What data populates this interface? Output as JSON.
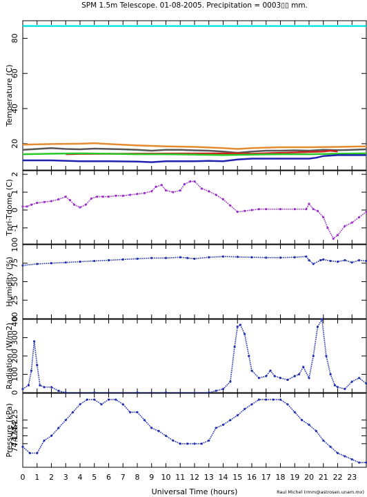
{
  "title": "SPM 1.5m Telescope. 01-08-2005. Precipitation = 0003▯▯ mm.",
  "xlabel": "Universal Time (hours)",
  "credit": "Raul Michel (rmm@astrosen.unam.mx)",
  "x_ticks": [
    0,
    1,
    2,
    3,
    4,
    5,
    6,
    7,
    8,
    9,
    10,
    11,
    12,
    13,
    14,
    15,
    16,
    17,
    18,
    19,
    20,
    21,
    22,
    23
  ],
  "xlim": [
    0,
    24
  ],
  "chart_data": [
    {
      "type": "line",
      "ylabel": "Temperature (C)",
      "ylim": [
        5,
        90
      ],
      "y_ticks": [
        20,
        40,
        60,
        80
      ],
      "series": [
        {
          "color": "#00e5e5",
          "x": [
            0,
            24
          ],
          "y": [
            87,
            87
          ]
        },
        {
          "color": "#e58a2e",
          "x": [
            0,
            2,
            4,
            5,
            6,
            8,
            10,
            12,
            14,
            15,
            16,
            18,
            20,
            22,
            24
          ],
          "y": [
            19.5,
            19.8,
            20,
            20.3,
            19.8,
            19,
            18.5,
            18.2,
            17.5,
            17,
            17.5,
            18,
            18,
            18.2,
            18.5
          ]
        },
        {
          "color": "#555555",
          "x": [
            0,
            1,
            2,
            3,
            4,
            5,
            6,
            7,
            8,
            9,
            10,
            11,
            12,
            13,
            14,
            15,
            16,
            17,
            18,
            19,
            20,
            21,
            22,
            23,
            24
          ],
          "y": [
            16.5,
            17,
            17.5,
            17,
            16.8,
            17.2,
            17,
            16.8,
            16.5,
            16,
            16.5,
            16.5,
            16.2,
            16,
            15.5,
            14.8,
            15.5,
            16,
            16,
            16.2,
            16,
            16.5,
            16.3,
            16.5,
            16.8
          ]
        },
        {
          "color": "#d02020",
          "x": [
            3,
            4,
            15,
            16,
            21,
            21.5,
            22
          ],
          "y": [
            14,
            14.2,
            14.5,
            14.3,
            15.5,
            16,
            15.5
          ]
        },
        {
          "color": "#28c828",
          "x": [
            0,
            2,
            4,
            6,
            8,
            10,
            12,
            14,
            16,
            18,
            20,
            22,
            24
          ],
          "y": [
            14,
            14.3,
            14.5,
            14.3,
            14,
            14,
            13.8,
            13.5,
            13.8,
            14,
            14,
            14.3,
            14.5
          ]
        },
        {
          "color": "#2020b0",
          "x": [
            0,
            2,
            4,
            6,
            8,
            9,
            10,
            12,
            13,
            14,
            15,
            16,
            18,
            20,
            20.5,
            21,
            22,
            24
          ],
          "y": [
            10.5,
            10.5,
            10,
            10,
            9.8,
            9.5,
            10,
            10,
            10.2,
            10,
            11,
            11.5,
            11.5,
            11.5,
            12,
            13,
            13.5,
            13.5
          ]
        }
      ]
    },
    {
      "type": "scatter",
      "ylabel": "Tpri-Tdome (C)",
      "ylim": [
        -1.9,
        2.2
      ],
      "y_ticks": [
        -1,
        0,
        1,
        2
      ],
      "series": [
        {
          "color": "#9a2fc8",
          "x": [
            0,
            0.3,
            0.6,
            1,
            1.5,
            2,
            2.5,
            3,
            3.3,
            3.6,
            4,
            4.4,
            4.8,
            5.2,
            5.6,
            6,
            6.5,
            7,
            7.5,
            8,
            8.5,
            9,
            9.3,
            9.7,
            10,
            10.5,
            11,
            11.3,
            11.7,
            12,
            12.5,
            13,
            13.5,
            14,
            14.5,
            15,
            15.5,
            16,
            16.5,
            17,
            18,
            19,
            19.8,
            20,
            20.3,
            20.6,
            21,
            21.3,
            21.7,
            22,
            22.5,
            23,
            23.5,
            24
          ],
          "y": [
            0.2,
            0.2,
            0.3,
            0.4,
            0.45,
            0.5,
            0.6,
            0.75,
            0.55,
            0.3,
            0.15,
            0.3,
            0.65,
            0.75,
            0.75,
            0.75,
            0.8,
            0.8,
            0.85,
            0.9,
            0.95,
            1.05,
            1.3,
            1.4,
            1.1,
            1,
            1.1,
            1.45,
            1.6,
            1.6,
            1.2,
            1.05,
            0.85,
            0.6,
            0.25,
            -0.1,
            -0.05,
            0,
            0.05,
            0.05,
            0.05,
            0.05,
            0.05,
            0.35,
            0.05,
            -0.05,
            -0.4,
            -1.0,
            -1.6,
            -1.4,
            -0.9,
            -0.7,
            -0.4,
            -0.1
          ]
        }
      ]
    },
    {
      "type": "scatter",
      "ylabel": "Humidity (%)",
      "ylim": [
        0,
        100
      ],
      "y_ticks": [
        0,
        25,
        50,
        75,
        100
      ],
      "series": [
        {
          "color": "#2030b0",
          "x": [
            0,
            1,
            2,
            3,
            4,
            5,
            6,
            7,
            8,
            9,
            10,
            11,
            11.5,
            12,
            13,
            14,
            15,
            16,
            17,
            18,
            19,
            19.8,
            20,
            20.3,
            20.8,
            21,
            21.5,
            22,
            22.5,
            23,
            23.5,
            24
          ],
          "y": [
            72,
            74,
            75,
            76,
            77,
            78,
            79,
            80,
            81,
            82,
            82,
            83,
            82,
            81,
            83,
            84,
            83.5,
            83,
            82.5,
            82.5,
            83,
            84,
            79,
            74,
            79,
            80,
            78,
            77,
            79,
            76,
            79,
            78
          ]
        }
      ]
    },
    {
      "type": "scatter",
      "ylabel": "Radiation (W/m2)",
      "ylim": [
        0,
        400
      ],
      "y_ticks": [
        0,
        100,
        200,
        300,
        400
      ],
      "series": [
        {
          "color": "#2030b0",
          "x": [
            0,
            0.4,
            0.6,
            0.8,
            1,
            1.2,
            1.5,
            2,
            2.5,
            3,
            5,
            8,
            10,
            13,
            13.5,
            14,
            14.5,
            14.8,
            15,
            15.2,
            15.5,
            15.8,
            16,
            16.5,
            17,
            17.3,
            17.6,
            18,
            18.5,
            19,
            19.3,
            19.6,
            20,
            20.3,
            20.6,
            20.9,
            21.2,
            21.5,
            21.8,
            22,
            22.5,
            23,
            23.5,
            24
          ],
          "y": [
            20,
            40,
            120,
            280,
            150,
            40,
            30,
            30,
            10,
            0,
            0,
            0,
            0,
            0,
            10,
            20,
            60,
            250,
            360,
            370,
            320,
            200,
            120,
            80,
            90,
            120,
            90,
            80,
            70,
            90,
            100,
            140,
            80,
            200,
            360,
            400,
            200,
            100,
            40,
            30,
            20,
            60,
            80,
            50
          ]
        }
      ]
    },
    {
      "type": "scatter",
      "ylabel": "Pressure (kPa)",
      "ylim": [
        73.95,
        74.42
      ],
      "y_ticks_labels": [
        "74.1",
        "74.15",
        "74.2",
        "74.25"
      ],
      "y_ticks": [
        74.1,
        74.15,
        74.2,
        74.25
      ],
      "series": [
        {
          "color": "#2030b0",
          "x": [
            0,
            0.5,
            1,
            1.5,
            2,
            2.5,
            3,
            3.5,
            4,
            4.5,
            5,
            5.5,
            6,
            6.5,
            7,
            7.5,
            8,
            8.5,
            9,
            9.5,
            10,
            10.5,
            11,
            11.5,
            12,
            12.5,
            13,
            13.5,
            14,
            14.5,
            15,
            15.5,
            16,
            16.5,
            17,
            17.5,
            18,
            18.5,
            19,
            19.5,
            20,
            20.5,
            21,
            21.5,
            22,
            22.5,
            23,
            23.5,
            24
          ],
          "y": [
            74.08,
            74.04,
            74.04,
            74.12,
            74.15,
            74.2,
            74.25,
            74.3,
            74.35,
            74.38,
            74.38,
            74.35,
            74.38,
            74.38,
            74.35,
            74.3,
            74.3,
            74.25,
            74.2,
            74.18,
            74.15,
            74.12,
            74.1,
            74.1,
            74.1,
            74.1,
            74.12,
            74.2,
            74.22,
            74.25,
            74.28,
            74.32,
            74.35,
            74.38,
            74.38,
            74.38,
            74.38,
            74.35,
            74.3,
            74.25,
            74.22,
            74.18,
            74.12,
            74.08,
            74.04,
            74.02,
            74.0,
            73.98,
            73.98
          ]
        }
      ]
    }
  ]
}
